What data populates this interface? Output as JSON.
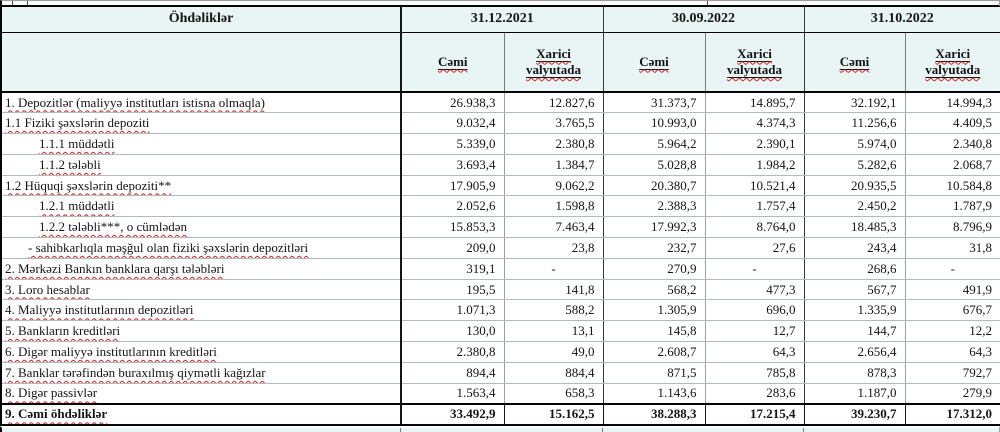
{
  "table": {
    "corner_label": "Öhdəliklər",
    "date_headers": [
      "31.12.2021",
      "30.09.2022",
      "31.10.2022"
    ],
    "sub_headers": {
      "total": "Cəmi",
      "foreign": "Xarici valyutada"
    },
    "colors": {
      "header_bg": "#e9f5f5",
      "border_dark": "#050505",
      "border_light": "#97a3a3",
      "squiggle_red": "#cc2222"
    },
    "rows": [
      {
        "label": "1. Depozitlər (maliyyə institutları istisna olmaqla)",
        "indent": 0,
        "bold": false,
        "values": [
          "26.938,3",
          "12.827,6",
          "31.373,7",
          "14.895,7",
          "32.192,1",
          "14.994,3"
        ]
      },
      {
        "label": "1.1 Fiziki şəxslərin depoziti",
        "indent": 0,
        "bold": false,
        "values": [
          "9.032,4",
          "3.765,5",
          "10.993,0",
          "4.374,3",
          "11.256,6",
          "4.409,5"
        ]
      },
      {
        "label": "1.1.1 müddətli",
        "indent": 1,
        "bold": false,
        "values": [
          "5.339,0",
          "2.380,8",
          "5.964,2",
          "2.390,1",
          "5.974,0",
          "2.340,8"
        ]
      },
      {
        "label": "1.1.2 tələbli",
        "indent": 1,
        "bold": false,
        "values": [
          "3.693,4",
          "1.384,7",
          "5.028,8",
          "1.984,2",
          "5.282,6",
          "2.068,7"
        ]
      },
      {
        "label": "1.2 Hüquqi şəxslərin depoziti**",
        "indent": 0,
        "bold": false,
        "values": [
          "17.905,9",
          "9.062,2",
          "20.380,7",
          "10.521,4",
          "20.935,5",
          "10.584,8"
        ]
      },
      {
        "label": "1.2.1 müddətli",
        "indent": 1,
        "bold": false,
        "values": [
          "2.052,6",
          "1.598,8",
          "2.388,3",
          "1.757,4",
          "2.450,2",
          "1.787,9"
        ]
      },
      {
        "label": "1.2.2 tələbli***, o cümlədən",
        "indent": 1,
        "bold": false,
        "values": [
          "15.853,3",
          "7.463,4",
          "17.992,3",
          "8.764,0",
          "18.485,3",
          "8.796,9"
        ]
      },
      {
        "label": "- sahibkarlıqla məşğul olan fiziki şəxslərin depozitləri",
        "indent": 2,
        "bold": false,
        "values": [
          "209,0",
          "23,8",
          "232,7",
          "27,6",
          "243,4",
          "31,8"
        ]
      },
      {
        "label": "2. Mərkəzi Bankın banklara qarşı tələbləri",
        "indent": 0,
        "bold": false,
        "values": [
          "319,1",
          "-",
          "270,9",
          "-",
          "268,6",
          "-"
        ]
      },
      {
        "label": "3. Loro hesablar",
        "indent": 0,
        "bold": false,
        "values": [
          "195,5",
          "141,8",
          "568,2",
          "477,3",
          "567,7",
          "491,9"
        ]
      },
      {
        "label": "4. Maliyyə institutlarının  depozitləri",
        "indent": 0,
        "bold": false,
        "values": [
          "1.071,3",
          "588,2",
          "1.305,9",
          "696,0",
          "1.335,9",
          "676,7"
        ]
      },
      {
        "label": "5. Bankların kreditləri",
        "indent": 0,
        "bold": false,
        "values": [
          "130,0",
          "13,1",
          "145,8",
          "12,7",
          "144,7",
          "12,2"
        ]
      },
      {
        "label": "6. Digər maliyyə institutlarının kreditləri",
        "indent": 0,
        "bold": false,
        "values": [
          "2.380,8",
          "49,0",
          "2.608,7",
          "64,3",
          "2.656,4",
          "64,3"
        ]
      },
      {
        "label": "7. Banklar tərəfindən buraxılmış qiymətli kağızlar",
        "indent": 0,
        "bold": false,
        "values": [
          "894,4",
          "884,4",
          "871,5",
          "785,8",
          "878,3",
          "792,7"
        ]
      },
      {
        "label": "8. Digər passivlər",
        "indent": 0,
        "bold": false,
        "values": [
          "1.563,4",
          "658,3",
          "1.143,6",
          "283,6",
          "1.187,0",
          "279,9"
        ]
      },
      {
        "label": "9. Cəmi öhdəliklər",
        "indent": 0,
        "bold": true,
        "values": [
          "33.492,9",
          "15.162,5",
          "38.288,3",
          "17.215,4",
          "39.230,7",
          "17.312,0"
        ]
      }
    ]
  }
}
